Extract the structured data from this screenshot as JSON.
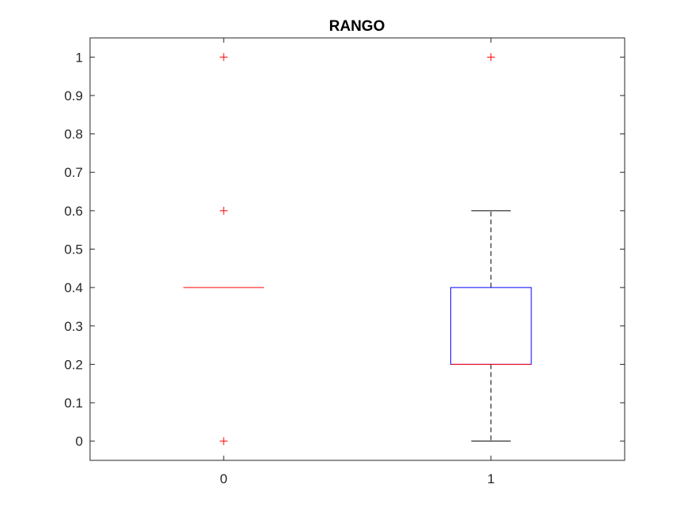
{
  "chart_data": {
    "type": "boxplot",
    "title": "RANGO",
    "xlabel": "",
    "ylabel": "",
    "categories": [
      "0",
      "1"
    ],
    "ylim": [
      -0.05,
      1.05
    ],
    "yticks": [
      0,
      0.1,
      0.2,
      0.3,
      0.4,
      0.5,
      0.6,
      0.7,
      0.8,
      0.9,
      1
    ],
    "ytick_labels": [
      "0",
      "0.1",
      "0.2",
      "0.3",
      "0.4",
      "0.5",
      "0.6",
      "0.7",
      "0.8",
      "0.9",
      "1"
    ],
    "grid": false,
    "boxes": [
      {
        "category": "0",
        "q1": 0.4,
        "median": 0.4,
        "q3": 0.4,
        "whisker_low": 0.4,
        "whisker_high": 0.4,
        "outliers": [
          1,
          0.6,
          0
        ]
      },
      {
        "category": "1",
        "q1": 0.2,
        "median": 0.2,
        "q3": 0.4,
        "whisker_low": 0,
        "whisker_high": 0.6,
        "outliers": [
          1
        ]
      }
    ],
    "colors": {
      "box": "#0000ff",
      "median": "#ff0000",
      "whisker": "#000000",
      "outlier": "#ff0000",
      "axis": "#262626"
    }
  }
}
